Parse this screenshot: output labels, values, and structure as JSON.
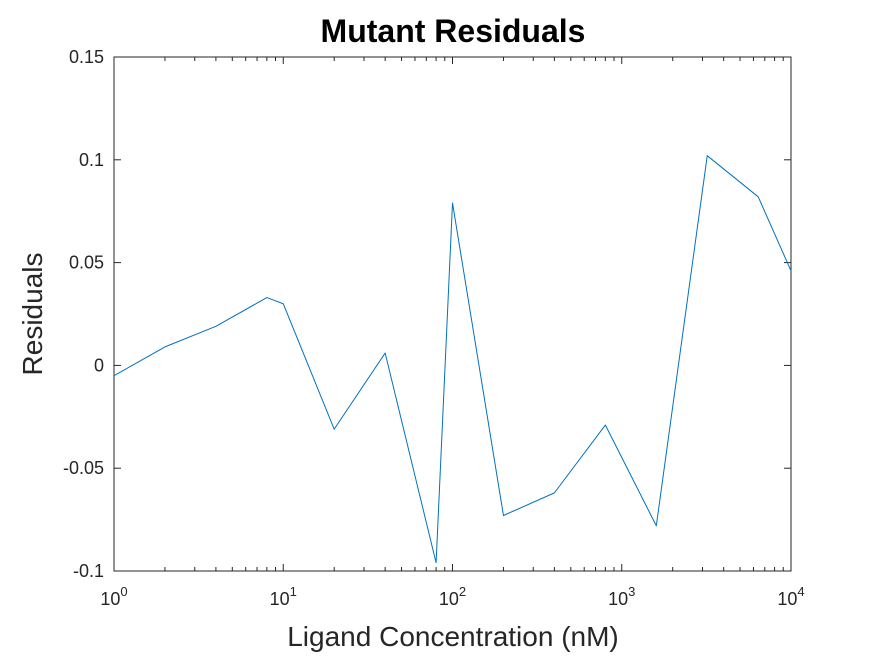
{
  "chart_data": {
    "type": "line",
    "title": "Mutant Residuals",
    "xlabel": "Ligand Concentration (nM)",
    "ylabel": "Residuals",
    "xscale": "log",
    "xlim": [
      1,
      10000
    ],
    "ylim": [
      -0.1,
      0.15
    ],
    "grid": false,
    "line_color": "#0072bd",
    "x_ticks": [
      {
        "base": "10",
        "exp": "0",
        "value": 1
      },
      {
        "base": "10",
        "exp": "1",
        "value": 10
      },
      {
        "base": "10",
        "exp": "2",
        "value": 100
      },
      {
        "base": "10",
        "exp": "3",
        "value": 1000
      },
      {
        "base": "10",
        "exp": "4",
        "value": 10000
      }
    ],
    "y_ticks": [
      {
        "label": "-0.1",
        "value": -0.1
      },
      {
        "label": "-0.05",
        "value": -0.05
      },
      {
        "label": "0",
        "value": 0
      },
      {
        "label": "0.05",
        "value": 0.05
      },
      {
        "label": "0.1",
        "value": 0.1
      },
      {
        "label": "0.15",
        "value": 0.15
      }
    ],
    "series": [
      {
        "x": [
          1,
          2,
          4,
          8,
          10,
          20,
          40,
          80,
          100,
          200,
          400,
          800,
          1600,
          3200,
          6400,
          10000
        ],
        "y": [
          -0.005,
          0.009,
          0.019,
          0.033,
          0.03,
          -0.031,
          0.006,
          -0.096,
          0.079,
          -0.073,
          -0.062,
          -0.029,
          -0.078,
          0.102,
          0.082,
          0.046
        ]
      }
    ]
  }
}
